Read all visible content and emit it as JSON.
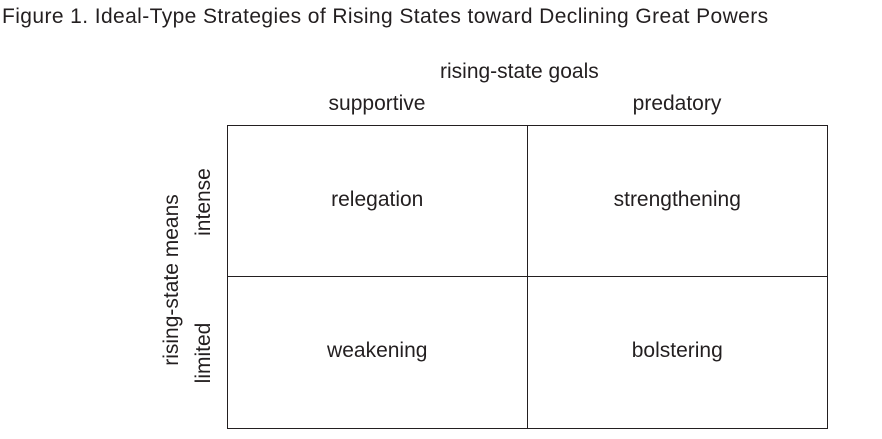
{
  "figure": {
    "title": "Figure 1.  Ideal-Type Strategies of Rising States toward Declining Great Powers"
  },
  "axes": {
    "goals_title": "rising-state goals",
    "goals_columns": [
      "supportive",
      "predatory"
    ],
    "means_title": "rising-state means",
    "means_rows": [
      "intense",
      "limited"
    ]
  },
  "matrix": {
    "cells": [
      [
        "relegation",
        "strengthening"
      ],
      [
        "weakening",
        "bolstering"
      ]
    ]
  }
}
